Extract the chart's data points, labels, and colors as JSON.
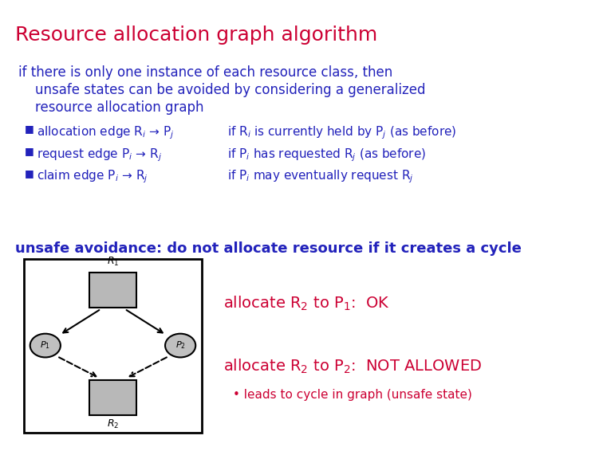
{
  "title": "Resource allocation graph algorithm",
  "title_color": "#cc0033",
  "title_fontsize": 18,
  "body_color": "#2222bb",
  "para_text_line1": "if there is only one instance of each resource class, then",
  "para_text_line2": "    unsafe states can be avoided by considering a generalized",
  "para_text_line3": "    resource allocation graph",
  "unsafe_text": "unsafe avoidance: do not allocate resource if it creates a cycle",
  "unsafe_color": "#2222bb",
  "alloc_ok_color": "#cc0033",
  "alloc_notallowed_color": "#cc0033",
  "leads_color": "#cc0033",
  "background": "#ffffff",
  "bullet1_left": "allocation edge R$_i$ → P$_j$",
  "bullet1_right": "if R$_i$ is currently held by P$_j$ (as before)",
  "bullet2_left": "request edge P$_i$ → R$_j$",
  "bullet2_right": "if P$_i$ has requested R$_j$ (as before)",
  "bullet3_left": "claim edge P$_i$ → R$_j$",
  "bullet3_right": "if P$_i$ may eventually request R$_j$",
  "alloc_ok_text": "allocate R$_2$ to P$_1$:  OK",
  "alloc_na_text": "allocate R$_2$ to P$_2$:  NOT ALLOWED",
  "leads_text": "• leads to cycle in graph (unsafe state)"
}
